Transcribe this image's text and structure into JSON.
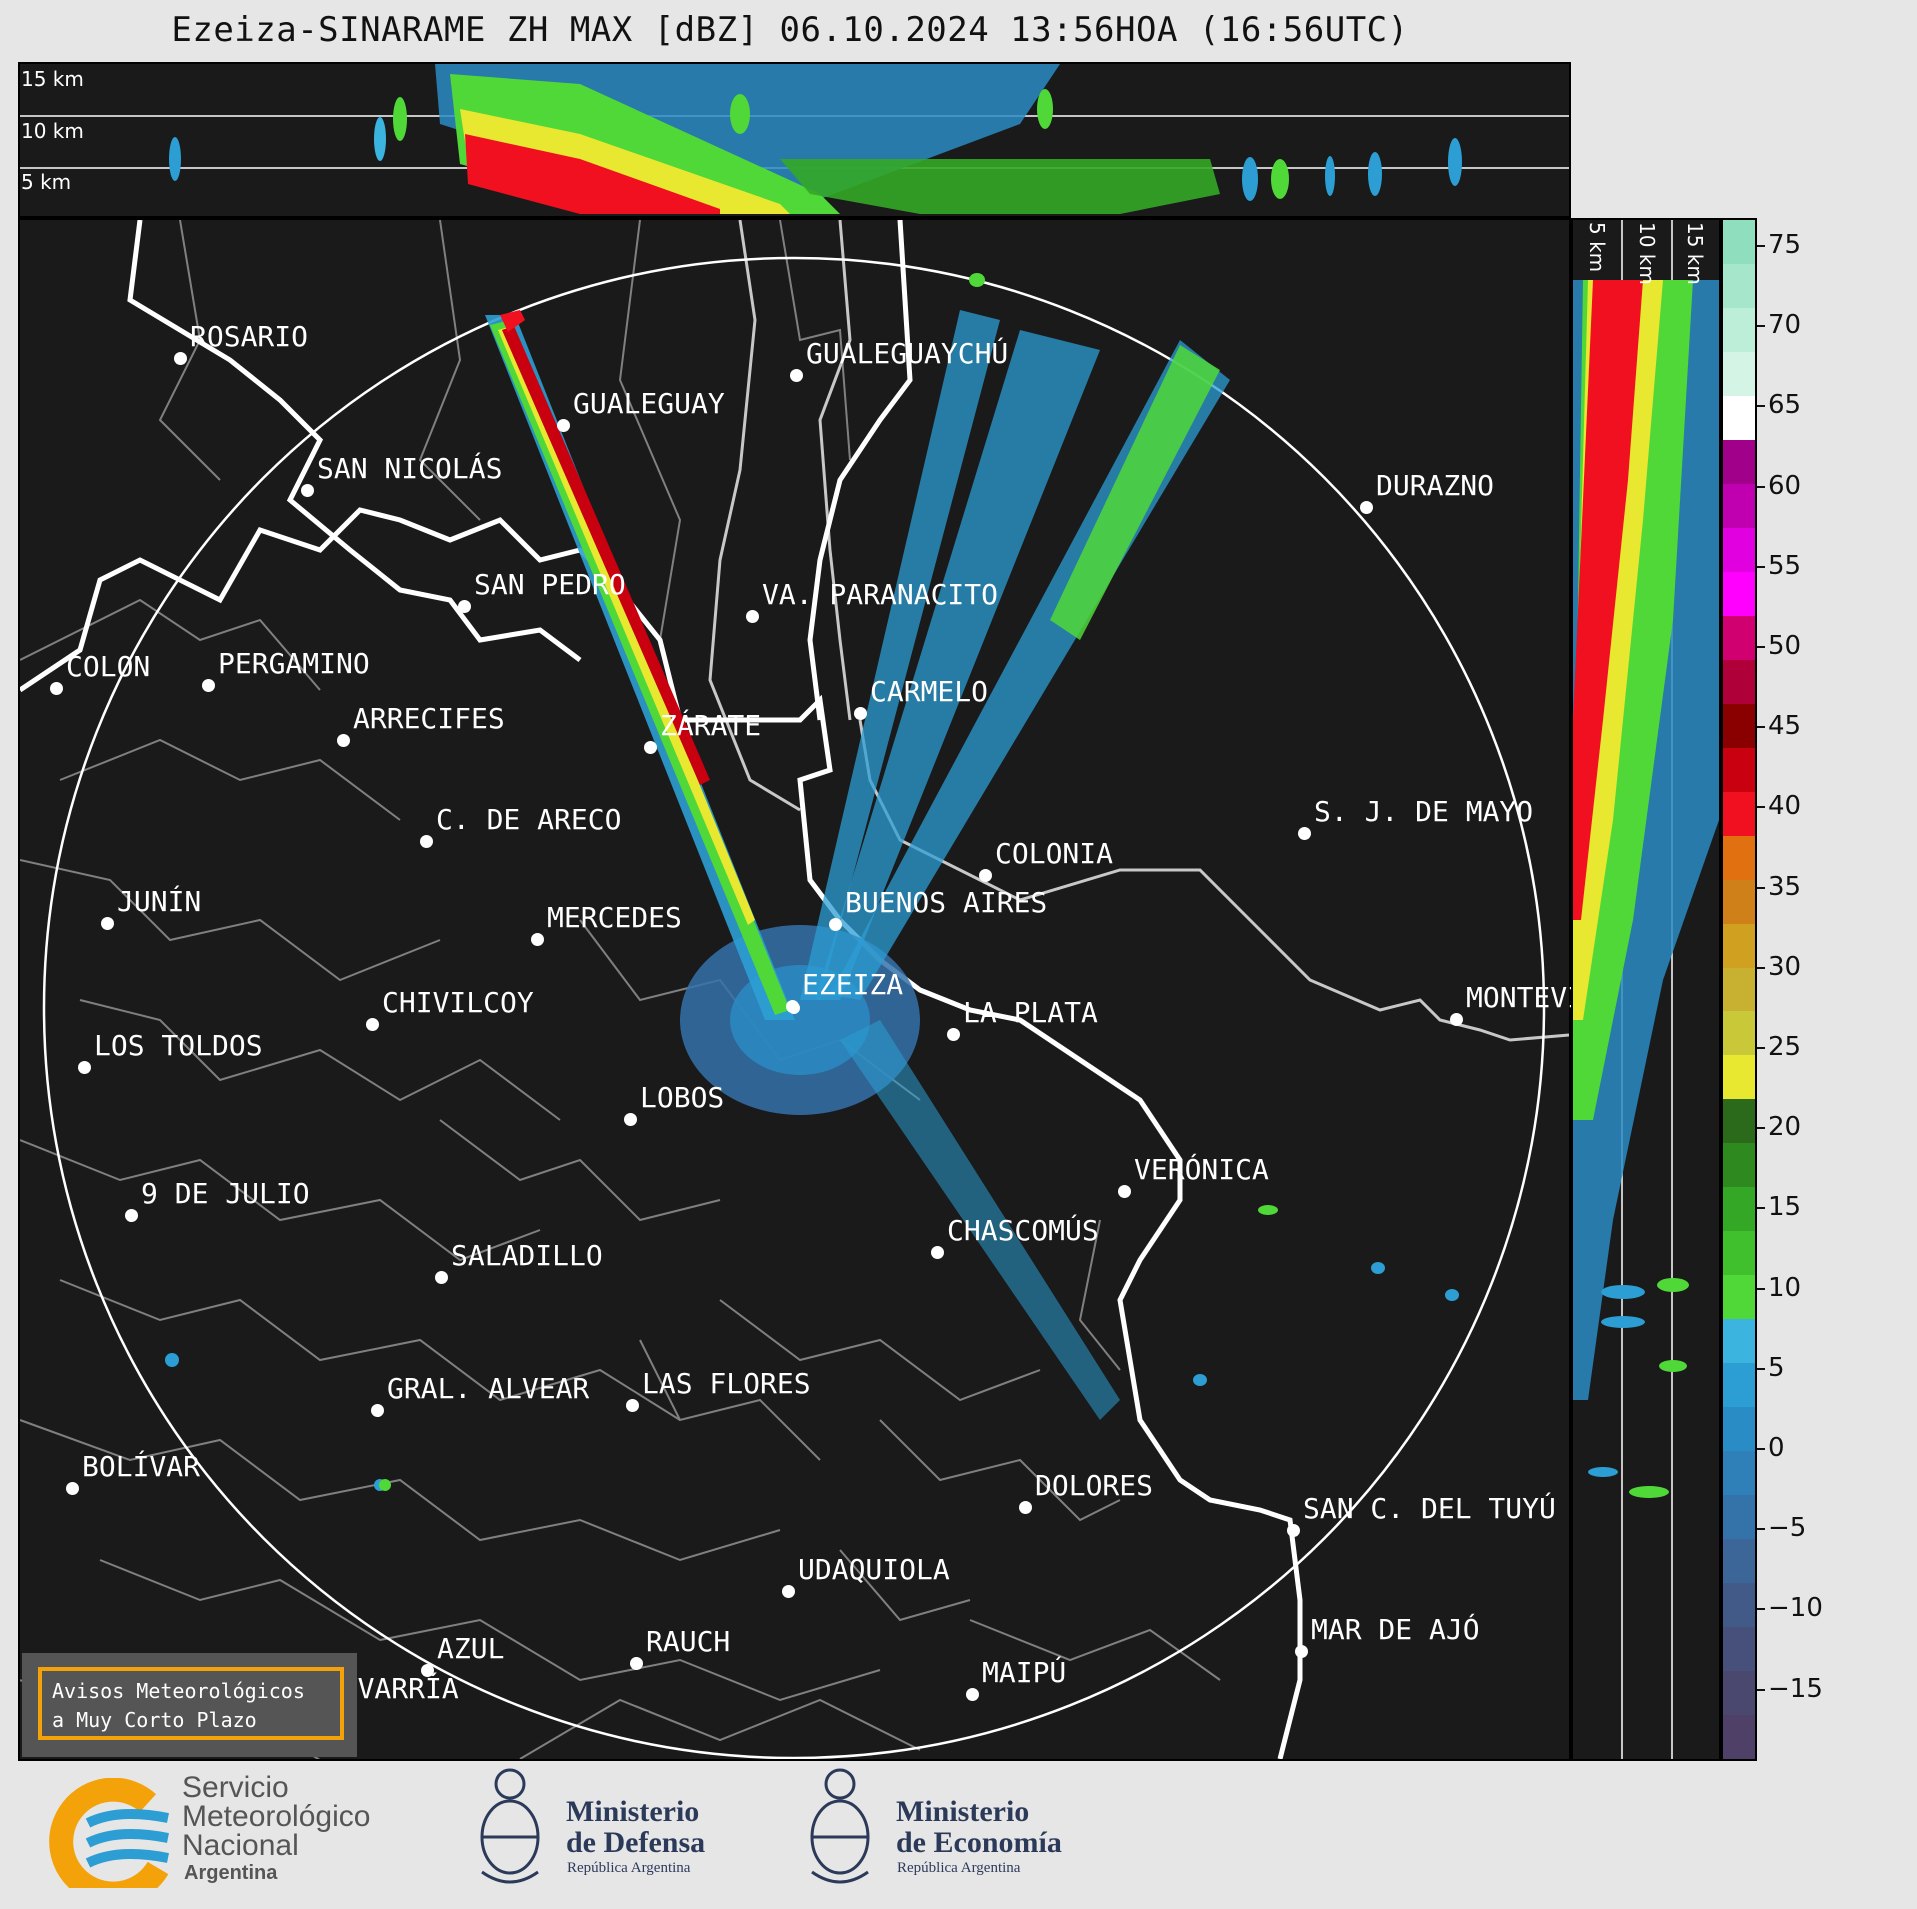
{
  "title": "Ezeiza-SINARAME ZH MAX [dBZ] 06.10.2024 13:56HOA (16:56UTC)",
  "height_labels": [
    "15 km",
    "10 km",
    "5 km"
  ],
  "colorbar": {
    "ticks": [
      "75",
      "70",
      "65",
      "60",
      "55",
      "50",
      "45",
      "40",
      "35",
      "30",
      "25",
      "20",
      "15",
      "10",
      "5",
      "0",
      "−5",
      "−10",
      "−15"
    ],
    "colors": [
      "#8fdfbf",
      "#a6e6cb",
      "#bdeed8",
      "#d4f5e6",
      "#ffffff",
      "#a0008a",
      "#c000b0",
      "#e000e0",
      "#ff00ff",
      "#d00070",
      "#b0003a",
      "#8a0000",
      "#c80010",
      "#f01020",
      "#e07010",
      "#d08018",
      "#d0a020",
      "#c8b030",
      "#c8c838",
      "#e8e830",
      "#2a6a1a",
      "#2e8a1e",
      "#34a826",
      "#40c02c",
      "#50d838",
      "#3cb4e0",
      "#2c9ed4",
      "#2a8cc4",
      "#2f7fb8",
      "#3472aa",
      "#3c6698",
      "#425a88",
      "#46507a",
      "#4a486e",
      "#4e4066"
    ],
    "unit": "dBZ"
  },
  "cities": [
    {
      "name": "ROSARIO",
      "dot": [
        180,
        358
      ],
      "label": [
        190,
        320
      ]
    },
    {
      "name": "GUALEGUAYCHÚ",
      "dot": [
        796,
        375
      ],
      "label": [
        806,
        337
      ]
    },
    {
      "name": "GUALEGUAY",
      "dot": [
        563,
        425
      ],
      "label": [
        573,
        387
      ]
    },
    {
      "name": "SAN NICOLÁS",
      "dot": [
        307,
        490
      ],
      "label": [
        317,
        452
      ]
    },
    {
      "name": "DURAZNO",
      "dot": [
        1366,
        507
      ],
      "label": [
        1376,
        469
      ]
    },
    {
      "name": "SAN PEDRO",
      "dot": [
        464,
        606
      ],
      "label": [
        474,
        568
      ]
    },
    {
      "name": "VA. PARANACITO",
      "dot": [
        752,
        616
      ],
      "label": [
        762,
        578
      ]
    },
    {
      "name": "COLON",
      "dot": [
        56,
        688
      ],
      "label": [
        66,
        650
      ]
    },
    {
      "name": "PERGAMINO",
      "dot": [
        208,
        685
      ],
      "label": [
        218,
        647
      ]
    },
    {
      "name": "CARMELO",
      "dot": [
        860,
        713
      ],
      "label": [
        870,
        675
      ]
    },
    {
      "name": "ARRECIFES",
      "dot": [
        343,
        740
      ],
      "label": [
        353,
        702
      ]
    },
    {
      "name": "ZÁRATE",
      "dot": [
        650,
        747
      ],
      "label": [
        660,
        709
      ]
    },
    {
      "name": "S. J. DE MAYO",
      "dot": [
        1304,
        833
      ],
      "label": [
        1314,
        795
      ]
    },
    {
      "name": "C. DE ARECO",
      "dot": [
        426,
        841
      ],
      "label": [
        436,
        803
      ]
    },
    {
      "name": "COLONIA",
      "dot": [
        985,
        875
      ],
      "label": [
        995,
        837
      ]
    },
    {
      "name": "JUNÍN",
      "dot": [
        107,
        923
      ],
      "label": [
        117,
        885
      ]
    },
    {
      "name": "BUENOS AIRES",
      "dot": [
        835,
        924
      ],
      "label": [
        845,
        886
      ]
    },
    {
      "name": "MERCEDES",
      "dot": [
        537,
        939
      ],
      "label": [
        547,
        901
      ]
    },
    {
      "name": "EZEIZA",
      "dot": [
        792,
        1006
      ],
      "label": [
        802,
        968
      ]
    },
    {
      "name": "MONTEVIDEO",
      "dot": [
        1456,
        1019
      ],
      "label": [
        1466,
        981
      ]
    },
    {
      "name": "CHIVILCOY",
      "dot": [
        372,
        1024
      ],
      "label": [
        382,
        986
      ]
    },
    {
      "name": "LA PLATA",
      "dot": [
        953,
        1034
      ],
      "label": [
        963,
        996
      ]
    },
    {
      "name": "LOS TOLDOS",
      "dot": [
        84,
        1067
      ],
      "label": [
        94,
        1029
      ]
    },
    {
      "name": "LOBOS",
      "dot": [
        630,
        1119
      ],
      "label": [
        640,
        1081
      ]
    },
    {
      "name": "VERÓNICA",
      "dot": [
        1124,
        1191
      ],
      "label": [
        1134,
        1153
      ]
    },
    {
      "name": "9 DE JULIO",
      "dot": [
        131,
        1215
      ],
      "label": [
        141,
        1177
      ]
    },
    {
      "name": "CHASCOMÚS",
      "dot": [
        937,
        1252
      ],
      "label": [
        947,
        1214
      ]
    },
    {
      "name": "SALADILLO",
      "dot": [
        441,
        1277
      ],
      "label": [
        451,
        1239
      ]
    },
    {
      "name": "GRAL. ALVEAR",
      "dot": [
        377,
        1410
      ],
      "label": [
        387,
        1372
      ]
    },
    {
      "name": "LAS FLORES",
      "dot": [
        632,
        1405
      ],
      "label": [
        642,
        1367
      ]
    },
    {
      "name": "BOLÍVAR",
      "dot": [
        72,
        1488
      ],
      "label": [
        82,
        1450
      ]
    },
    {
      "name": "DOLORES",
      "dot": [
        1025,
        1507
      ],
      "label": [
        1035,
        1469
      ]
    },
    {
      "name": "SAN C. DEL TUYÚ",
      "dot": [
        1293,
        1530
      ],
      "label": [
        1303,
        1492
      ]
    },
    {
      "name": "UDAQUIOLA",
      "dot": [
        788,
        1591
      ],
      "label": [
        798,
        1553
      ]
    },
    {
      "name": "MAR DE AJÓ",
      "dot": [
        1301,
        1651
      ],
      "label": [
        1311,
        1613
      ]
    },
    {
      "name": "AZUL",
      "dot": [
        427,
        1670
      ],
      "label": [
        437,
        1632
      ]
    },
    {
      "name": "RAUCH",
      "dot": [
        636,
        1663
      ],
      "label": [
        646,
        1625
      ]
    },
    {
      "name": "MAIPÚ",
      "dot": [
        972,
        1694
      ],
      "label": [
        982,
        1656
      ]
    },
    {
      "name": "OLAVARRÍA",
      "dot": [
        297,
        1710
      ],
      "label": [
        307,
        1672
      ]
    }
  ],
  "notice": {
    "line1": "Avisos Meteorológicos",
    "line2": "a Muy Corto Plazo"
  },
  "logos": {
    "smn": {
      "line1": "Servicio",
      "line2": "Meteorológico",
      "line3": "Nacional",
      "line4": "Argentina"
    },
    "defensa": {
      "line1": "Ministerio",
      "line2": "de Defensa",
      "line3": "República Argentina"
    },
    "economia": {
      "line1": "Ministerio",
      "line2": "de Economía",
      "line3": "República Argentina"
    }
  }
}
